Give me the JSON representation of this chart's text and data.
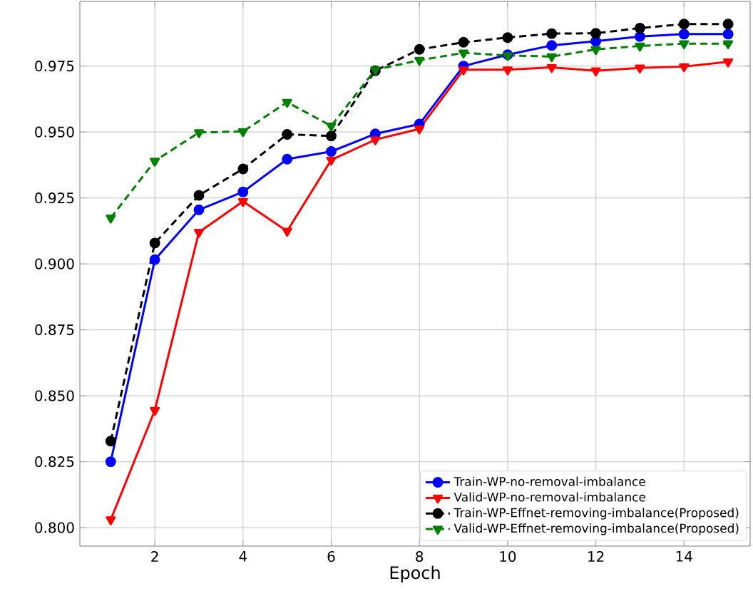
{
  "chart_data": {
    "type": "line",
    "xlabel": "Epoch",
    "x": [
      1,
      2,
      3,
      4,
      5,
      6,
      7,
      8,
      9,
      10,
      11,
      12,
      13,
      14,
      15
    ],
    "series": [
      {
        "name": "Train-WP-no-removal-imbalance",
        "color": "#0000ff",
        "marker": "circle",
        "line_style": "solid",
        "values": [
          0.825,
          0.9016,
          0.9205,
          0.9273,
          0.9397,
          0.9426,
          0.9493,
          0.953,
          0.975,
          0.9793,
          0.9828,
          0.9844,
          0.9862,
          0.9871,
          0.9871
        ]
      },
      {
        "name": "Valid-WP-no-removal-imbalance",
        "color": "#ff0000",
        "marker": "triangle",
        "line_style": "solid",
        "values": [
          0.803,
          0.8445,
          0.912,
          0.9237,
          0.9124,
          0.9394,
          0.9471,
          0.9512,
          0.9736,
          0.9736,
          0.9745,
          0.9732,
          0.9743,
          0.9748,
          0.9766
        ]
      },
      {
        "name": "Train-WP-Effnet-removing-imbalance(Proposed)",
        "color": "#000000",
        "marker": "circle",
        "line_style": "dashed",
        "values": [
          0.8328,
          0.9079,
          0.926,
          0.936,
          0.9491,
          0.9485,
          0.9732,
          0.9813,
          0.984,
          0.9858,
          0.9873,
          0.9874,
          0.9894,
          0.9909,
          0.9909
        ]
      },
      {
        "name": "Valid-WP-Effnet-removing-imbalance(Proposed)",
        "color": "#008000",
        "marker": "triangle",
        "line_style": "dashed",
        "values": [
          0.9174,
          0.939,
          0.9498,
          0.9502,
          0.9613,
          0.9523,
          0.9736,
          0.9772,
          0.98,
          0.979,
          0.9786,
          0.9813,
          0.9826,
          0.9835,
          0.9835
        ]
      }
    ],
    "xlim": [
      0.3,
      15.5
    ],
    "ylim": [
      0.793,
      0.9995
    ],
    "xticks": [
      2,
      4,
      6,
      8,
      10,
      12,
      14
    ],
    "yticks": [
      {
        "value": 0.8,
        "label": "0.800"
      },
      0.825,
      {
        "value": 0.85,
        "label": "0.850"
      },
      0.875,
      {
        "value": 0.9,
        "label": "0.900"
      },
      0.925,
      {
        "value": 0.95,
        "label": "0.950"
      },
      0.975
    ],
    "grid": true,
    "legend": "bottom right"
  }
}
